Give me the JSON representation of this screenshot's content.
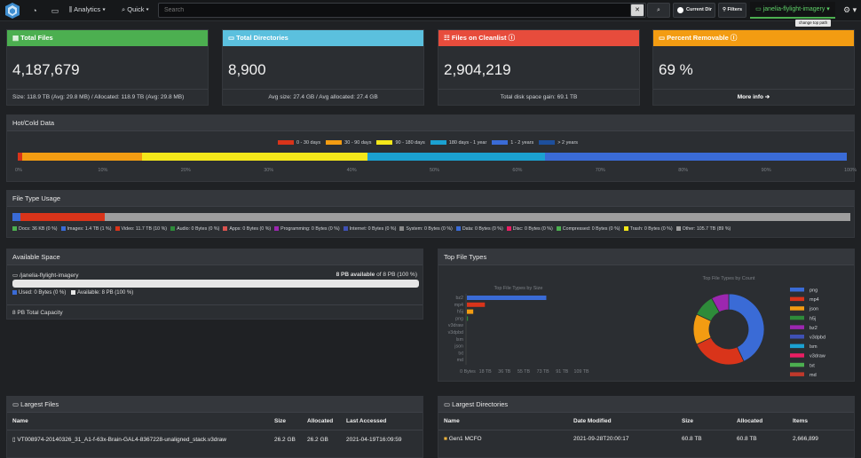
{
  "nav": {
    "analytics_label": "Analytics",
    "quick_label": "Quick",
    "search_placeholder": "Search",
    "current_dir_label": "Current Dir",
    "filters_label": "Filters",
    "top_path": "janelia-flylight-imagery",
    "tooltip": "change top path"
  },
  "stats": {
    "total_files": {
      "title": "Total Files",
      "value": "4,187,679",
      "footer": "Size: 118.9 TB (Avg: 29.8 MB) / Allocated: 118.9 TB (Avg: 29.8 MB)",
      "color": "#4caf50"
    },
    "total_dirs": {
      "title": "Total Directories",
      "value": "8,900",
      "footer": "Avg size: 27.4 GB / Avg allocated: 27.4 GB",
      "color": "#5bc0de"
    },
    "cleanlist": {
      "title": "Files on Cleanlist",
      "value": "2,904,219",
      "footer": "Total disk space gain: 69.1 TB",
      "color": "#e74c3c"
    },
    "removable": {
      "title": "Percent Removable",
      "value": "69 %",
      "footer": "More info",
      "color": "#f39c12"
    }
  },
  "hotcold": {
    "title": "Hot/Cold Data",
    "legend": [
      {
        "label": "0 - 30 days",
        "color": "#d9341a"
      },
      {
        "label": "30 - 90 days",
        "color": "#f39c12"
      },
      {
        "label": "90 - 180 days",
        "color": "#f4e71a"
      },
      {
        "label": "180 days - 1 year",
        "color": "#1ba1d1"
      },
      {
        "label": "1 - 2 years",
        "color": "#3a6bd6"
      },
      {
        "label": "> 2 years",
        "color": "#1d4f9c"
      }
    ],
    "ticks": [
      "0%",
      "10%",
      "20%",
      "30%",
      "40%",
      "50%",
      "60%",
      "70%",
      "80%",
      "90%",
      "100%"
    ]
  },
  "filetype_usage": {
    "title": "File Type Usage",
    "items": [
      {
        "label": "Docs: 36 KB (0 %)",
        "color": "#4caf50"
      },
      {
        "label": "Images: 1.4 TB (1 %)",
        "color": "#3a6bd6"
      },
      {
        "label": "Video: 11.7 TB (10 %)",
        "color": "#d9341a"
      },
      {
        "label": "Audio: 0 Bytes (0 %)",
        "color": "#2e8b3a"
      },
      {
        "label": "Apps: 0 Bytes (0 %)",
        "color": "#d9534f"
      },
      {
        "label": "Programming: 0 Bytes (0 %)",
        "color": "#9c27b0"
      },
      {
        "label": "Internet: 0 Bytes (0 %)",
        "color": "#3f51b5"
      },
      {
        "label": "System: 0 Bytes (0 %)",
        "color": "#888888"
      },
      {
        "label": "Data: 0 Bytes (0 %)",
        "color": "#3a6bd6"
      },
      {
        "label": "Disc: 0 Bytes (0 %)",
        "color": "#e91e63"
      },
      {
        "label": "Compressed: 0 Bytes (0 %)",
        "color": "#4caf50"
      },
      {
        "label": "Trash: 0 Bytes (0 %)",
        "color": "#f4e71a"
      },
      {
        "label": "Other: 105.7 TB (89 %)",
        "color": "#9e9e9e"
      }
    ]
  },
  "available_space": {
    "title": "Available Space",
    "path": "/janelia-flylight-imagery",
    "available_strong": "8 PB available",
    "available_rest": "of 8 PB (100 %)",
    "used_label": "Used: 0 Bytes (0 %)",
    "avail_label": "Available: 8 PB (100 %)",
    "total": "8 PB Total Capacity"
  },
  "top_file_types": {
    "title": "Top File Types",
    "bar_title": "Top File Types by Size",
    "pie_title": "Top File Types by Count",
    "bar_categories": [
      "bz2",
      "mp4",
      "h5j",
      "png",
      "v3draw",
      "v3dpbd",
      "lsm",
      "json",
      "txt",
      "md"
    ],
    "bar_ticks": [
      "0 Bytes",
      "18 TB",
      "36 TB",
      "55 TB",
      "73 TB",
      "91 TB",
      "109 TB"
    ]
  },
  "chart_data": [
    {
      "type": "bar",
      "title": "Hot/Cold Data",
      "categories": [
        "0 - 30 days",
        "30 - 90 days",
        "90 - 180 days",
        "180 days - 1 year",
        "1 - 2 years",
        "> 2 years"
      ],
      "values": [
        0.5,
        14.5,
        27.2,
        21.4,
        36.4,
        0
      ],
      "xlabel": "",
      "ylabel": "",
      "ylim": [
        0,
        100
      ]
    },
    {
      "type": "bar",
      "title": "File Type Usage",
      "categories": [
        "Docs",
        "Images",
        "Video",
        "Audio",
        "Apps",
        "Programming",
        "Internet",
        "System",
        "Data",
        "Disc",
        "Compressed",
        "Trash",
        "Other"
      ],
      "values": [
        0,
        1,
        10,
        0,
        0,
        0,
        0,
        0,
        0,
        0,
        0,
        0,
        89
      ]
    },
    {
      "type": "bar",
      "title": "Top File Types by Size",
      "categories": [
        "bz2",
        "mp4",
        "h5j",
        "png",
        "v3draw",
        "v3dpbd",
        "lsm",
        "json",
        "txt",
        "md"
      ],
      "values": [
        75,
        17,
        6,
        1,
        0,
        0,
        0,
        0,
        0,
        0
      ],
      "xlim": [
        0,
        109
      ],
      "xlabel": "",
      "ylabel": ""
    },
    {
      "type": "pie",
      "title": "Top File Types by Count",
      "categories": [
        "png",
        "mp4",
        "json",
        "h5j",
        "bz2",
        "v3dpbd",
        "lsm",
        "v3draw",
        "txt",
        "md"
      ],
      "values": [
        43,
        25,
        14,
        10,
        8,
        0,
        0,
        0,
        0,
        0
      ],
      "colors": [
        "#3a6bd6",
        "#d9341a",
        "#f39c12",
        "#2e8b3a",
        "#9c27b0",
        "#3f51b5",
        "#1ba1d1",
        "#e91e63",
        "#4caf50",
        "#c0392b"
      ]
    }
  ],
  "largest_files": {
    "title": "Largest Files",
    "cols": [
      "Name",
      "Size",
      "Allocated",
      "Last Accessed"
    ],
    "rows": [
      {
        "name": "VT008974-20140326_31_A1-f-63x-Brain-GAL4-8367228-unaligned_stack.v3draw",
        "size": "26.2 GB",
        "allocated": "26.2 GB",
        "accessed": "2021-04-19T16:09:59"
      }
    ]
  },
  "largest_dirs": {
    "title": "Largest Directories",
    "cols": [
      "Name",
      "Date Modified",
      "Size",
      "Allocated",
      "Items"
    ],
    "rows": [
      {
        "name": "Gen1 MCFO",
        "modified": "2021-09-28T20:00:17",
        "size": "60.8 TB",
        "allocated": "60.8 TB",
        "items": "2,666,899"
      }
    ]
  }
}
